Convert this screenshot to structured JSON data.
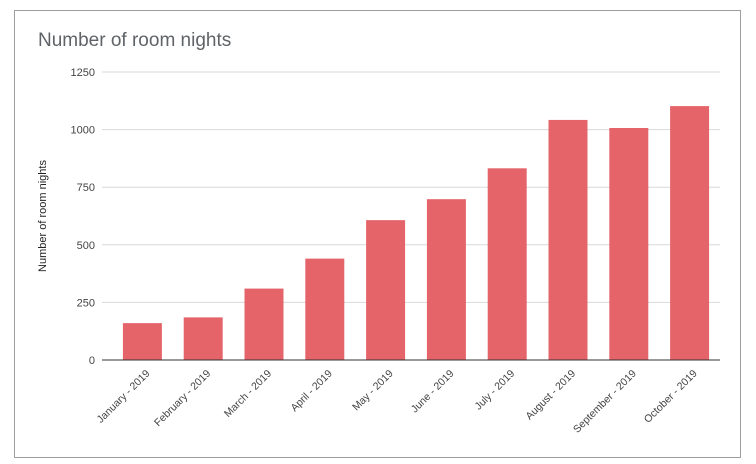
{
  "chart_data": {
    "type": "bar",
    "title": "Number of room nights",
    "xlabel": "",
    "ylabel": "Number of room nights",
    "categories": [
      "January - 2019",
      "February - 2019",
      "March - 2019",
      "April - 2019",
      "May - 2019",
      "June - 2019",
      "July - 2019",
      "August - 2019",
      "September - 2019",
      "October - 2019"
    ],
    "series": [
      {
        "values": [
          160,
          185,
          310,
          440,
          607,
          698,
          832,
          1042,
          1007,
          1102
        ]
      }
    ],
    "ylim": [
      0,
      1250
    ],
    "yticks": [
      0,
      250,
      500,
      750,
      1000,
      1250
    ],
    "grid": true,
    "legend": "none",
    "colors": {
      "bar": "#e5646a",
      "grid": "#d9d9d9",
      "axis": "#333333",
      "text": "#444444",
      "title": "#5f6368"
    }
  }
}
